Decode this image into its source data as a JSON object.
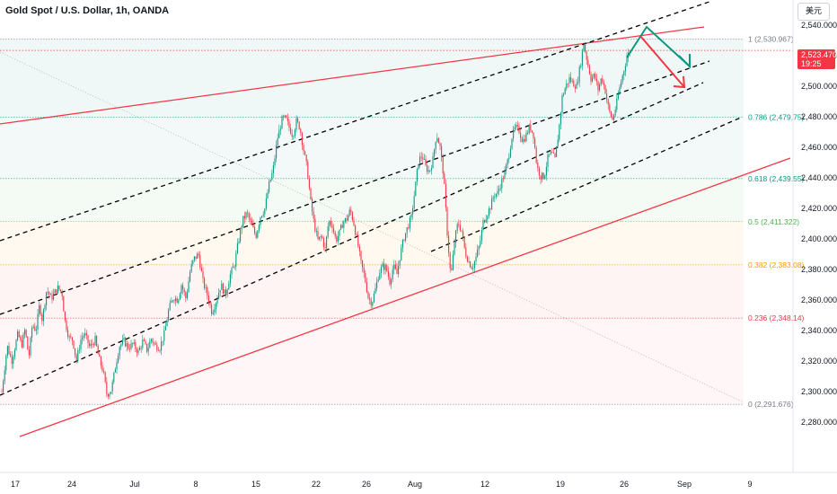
{
  "header": {
    "title": "Gold Spot / U.S. Dollar, 1h, OANDA",
    "currency_button": "美元"
  },
  "price_tag": {
    "price": "2,523.470",
    "countdown": "19:25",
    "color": "#f23645"
  },
  "colors": {
    "up": "#089981",
    "down": "#f23645",
    "channel": "#f23645",
    "dashed": "#000000",
    "arrow_green": "#089981",
    "arrow_red": "#f23645"
  },
  "chart_data": {
    "type": "candlestick",
    "title": "Gold Spot / U.S. Dollar, 1h, OANDA",
    "xlabel": "",
    "ylabel": "",
    "ylim": [
      2272,
      2552
    ],
    "x_ticks": [
      "17",
      "24",
      "Jul",
      "8",
      "15",
      "22",
      "26",
      "Aug",
      "12",
      "19",
      "26",
      "Sep",
      "9"
    ],
    "y_ticks": [
      "2,280.000",
      "2,300.000",
      "2,320.000",
      "2,340.000",
      "2,360.000",
      "2,380.000",
      "2,400.000",
      "2,420.000",
      "2,440.000",
      "2,460.000",
      "2,480.000",
      "2,500.000",
      "2,520.000",
      "2,540.000"
    ],
    "fibonacci": [
      {
        "label": "1 (2,530.967)",
        "level": 1,
        "price": 2530.967,
        "color": "#787b86"
      },
      {
        "label": "0.786 (2,479.75)",
        "level": 0.786,
        "price": 2479.75,
        "color": "#089981"
      },
      {
        "label": "0.618 (2,439.55)",
        "level": 0.618,
        "price": 2439.55,
        "color": "#089981"
      },
      {
        "label": "0.5 (2,411.322)",
        "level": 0.5,
        "price": 2411.322,
        "color": "#4caf50"
      },
      {
        "label": "0.382 (2,383.08)",
        "level": 0.382,
        "price": 2383.08,
        "color": "#ff9800"
      },
      {
        "label": "0.236 (2,348.14)",
        "level": 0.236,
        "price": 2348.14,
        "color": "#f23645"
      },
      {
        "label": "0 (2,291.676)",
        "level": 0,
        "price": 2291.676,
        "color": "#787b86"
      }
    ],
    "price_path": [
      [
        0,
        2300
      ],
      [
        6,
        2330
      ],
      [
        11,
        2320
      ],
      [
        18,
        2338
      ],
      [
        22,
        2330
      ],
      [
        26,
        2341
      ],
      [
        30,
        2322
      ],
      [
        34,
        2344
      ],
      [
        38,
        2340
      ],
      [
        42,
        2357
      ],
      [
        45,
        2347
      ],
      [
        50,
        2367
      ],
      [
        55,
        2361
      ],
      [
        62,
        2368
      ],
      [
        67,
        2365
      ],
      [
        70,
        2347
      ],
      [
        75,
        2335
      ],
      [
        79,
        2334
      ],
      [
        83,
        2320
      ],
      [
        88,
        2334
      ],
      [
        92,
        2338
      ],
      [
        98,
        2329
      ],
      [
        104,
        2334
      ],
      [
        108,
        2322
      ],
      [
        113,
        2313
      ],
      [
        117,
        2298
      ],
      [
        122,
        2301
      ],
      [
        127,
        2318
      ],
      [
        131,
        2330
      ],
      [
        136,
        2333
      ],
      [
        141,
        2329
      ],
      [
        146,
        2331
      ],
      [
        152,
        2326
      ],
      [
        157,
        2333
      ],
      [
        162,
        2327
      ],
      [
        166,
        2335
      ],
      [
        171,
        2330
      ],
      [
        176,
        2329
      ],
      [
        181,
        2338
      ],
      [
        186,
        2354
      ],
      [
        191,
        2362
      ],
      [
        196,
        2360
      ],
      [
        200,
        2370
      ],
      [
        205,
        2361
      ],
      [
        210,
        2380
      ],
      [
        214,
        2387
      ],
      [
        219,
        2390
      ],
      [
        224,
        2372
      ],
      [
        229,
        2363
      ],
      [
        234,
        2352
      ],
      [
        239,
        2360
      ],
      [
        244,
        2370
      ],
      [
        249,
        2363
      ],
      [
        254,
        2376
      ],
      [
        259,
        2383
      ],
      [
        263,
        2397
      ],
      [
        268,
        2412
      ],
      [
        273,
        2417
      ],
      [
        278,
        2409
      ],
      [
        283,
        2402
      ],
      [
        288,
        2415
      ],
      [
        293,
        2420
      ],
      [
        297,
        2434
      ],
      [
        302,
        2445
      ],
      [
        307,
        2466
      ],
      [
        312,
        2478
      ],
      [
        316,
        2479
      ],
      [
        320,
        2473
      ],
      [
        324,
        2468
      ],
      [
        328,
        2477
      ],
      [
        332,
        2473
      ],
      [
        336,
        2458
      ],
      [
        340,
        2446
      ],
      [
        344,
        2424
      ],
      [
        348,
        2409
      ],
      [
        352,
        2399
      ],
      [
        356,
        2402
      ],
      [
        360,
        2393
      ],
      [
        364,
        2412
      ],
      [
        368,
        2409
      ],
      [
        372,
        2399
      ],
      [
        376,
        2404
      ],
      [
        380,
        2411
      ],
      [
        384,
        2413
      ],
      [
        388,
        2419
      ],
      [
        392,
        2410
      ],
      [
        396,
        2398
      ],
      [
        400,
        2384
      ],
      [
        404,
        2375
      ],
      [
        408,
        2362
      ],
      [
        412,
        2358
      ],
      [
        416,
        2367
      ],
      [
        420,
        2378
      ],
      [
        424,
        2382
      ],
      [
        428,
        2381
      ],
      [
        432,
        2372
      ],
      [
        436,
        2382
      ],
      [
        440,
        2377
      ],
      [
        444,
        2391
      ],
      [
        448,
        2401
      ],
      [
        452,
        2408
      ],
      [
        456,
        2414
      ],
      [
        460,
        2432
      ],
      [
        464,
        2451
      ],
      [
        468,
        2455
      ],
      [
        472,
        2447
      ],
      [
        476,
        2444
      ],
      [
        480,
        2452
      ],
      [
        484,
        2469
      ],
      [
        488,
        2460
      ],
      [
        492,
        2441
      ],
      [
        496,
        2404
      ],
      [
        500,
        2374
      ],
      [
        504,
        2398
      ],
      [
        508,
        2411
      ],
      [
        512,
        2405
      ],
      [
        516,
        2391
      ],
      [
        520,
        2385
      ],
      [
        524,
        2381
      ],
      [
        528,
        2388
      ],
      [
        532,
        2396
      ],
      [
        536,
        2411
      ],
      [
        540,
        2416
      ],
      [
        544,
        2421
      ],
      [
        548,
        2429
      ],
      [
        552,
        2430
      ],
      [
        556,
        2437
      ],
      [
        560,
        2443
      ],
      [
        564,
        2453
      ],
      [
        568,
        2467
      ],
      [
        572,
        2473
      ],
      [
        576,
        2471
      ],
      [
        580,
        2464
      ],
      [
        584,
        2468
      ],
      [
        588,
        2474
      ],
      [
        592,
        2468
      ],
      [
        596,
        2447
      ],
      [
        600,
        2441
      ],
      [
        604,
        2441
      ],
      [
        608,
        2453
      ],
      [
        612,
        2456
      ],
      [
        616,
        2452
      ],
      [
        620,
        2470
      ],
      [
        624,
        2493
      ],
      [
        628,
        2500
      ],
      [
        632,
        2505
      ],
      [
        636,
        2502
      ],
      [
        640,
        2500
      ],
      [
        644,
        2513
      ],
      [
        648,
        2528
      ],
      [
        652,
        2516
      ],
      [
        656,
        2505
      ],
      [
        660,
        2507
      ],
      [
        664,
        2498
      ],
      [
        668,
        2506
      ],
      [
        672,
        2497
      ],
      [
        676,
        2484
      ],
      [
        680,
        2478
      ],
      [
        684,
        2487
      ],
      [
        688,
        2499
      ],
      [
        692,
        2509
      ],
      [
        696,
        2519
      ],
      [
        700,
        2523.47
      ]
    ],
    "lines": [
      {
        "name": "upper-channel",
        "style": "solid",
        "color": "#f23645"
      },
      {
        "name": "lower-channel",
        "style": "solid",
        "color": "#f23645"
      },
      {
        "name": "dashed-1",
        "style": "dashed",
        "color": "#000000"
      },
      {
        "name": "dashed-2",
        "style": "dashed",
        "color": "#000000"
      },
      {
        "name": "dashed-3",
        "style": "dashed",
        "color": "#000000"
      },
      {
        "name": "dashed-4",
        "style": "dashed",
        "color": "#000000"
      },
      {
        "name": "diagonal-dotted",
        "style": "dotted",
        "color": "#9598a1"
      }
    ]
  }
}
